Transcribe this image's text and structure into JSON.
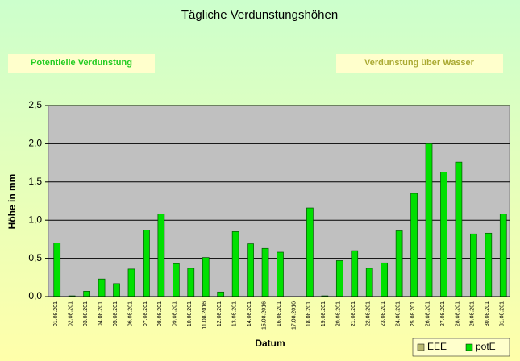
{
  "chart_data": {
    "type": "bar",
    "title": "Tägliche Verdunstungshöhen",
    "annotations": [
      "Potentielle Verdunstung",
      "Verdunstung über Wasser"
    ],
    "xlabel": "Datum",
    "ylabel": "Höhe in mm",
    "categories": [
      "01.08.201",
      "02.08.201",
      "03.08.201",
      "04.08.201",
      "05.08.201",
      "06.08.201",
      "07.08.201",
      "08.08.201",
      "09.08.201",
      "10.08.201",
      "11.08.2016",
      "12.08.201",
      "13.08.201",
      "14.08.201",
      "15.08.2016",
      "16.08.201",
      "17.08.2016",
      "18.08.201",
      "19.08.201",
      "20.08.201",
      "21.08.201",
      "22.08.201",
      "23.08.201",
      "24.08.201",
      "25.08.201",
      "26.08.201",
      "27.08.201",
      "28.08.201",
      "29.08.201",
      "30.08.201",
      "31.08.201"
    ],
    "series": [
      {
        "name": "EEE",
        "color": "#b8b870",
        "values": [
          null,
          null,
          null,
          null,
          null,
          null,
          null,
          null,
          null,
          null,
          null,
          null,
          null,
          null,
          null,
          null,
          null,
          null,
          null,
          null,
          null,
          null,
          null,
          null,
          null,
          null,
          null,
          null,
          null,
          null,
          null
        ]
      },
      {
        "name": "potE",
        "color": "#00e000",
        "values": [
          0.7,
          0.01,
          0.07,
          0.23,
          0.17,
          0.36,
          0.87,
          1.08,
          0.43,
          0.37,
          0.51,
          0.06,
          0.85,
          0.69,
          0.63,
          0.58,
          0,
          1.16,
          0.01,
          0.47,
          0.6,
          0.37,
          0.44,
          0.86,
          1.35,
          2.0,
          1.63,
          1.76,
          0.82,
          0.83,
          1.08
        ]
      }
    ],
    "ylim": [
      0,
      2.5
    ],
    "yticks": [
      {
        "value": 0,
        "label": "0,0"
      },
      {
        "value": 0.5,
        "label": "0,5"
      },
      {
        "value": 1,
        "label": "1,0"
      },
      {
        "value": 1.5,
        "label": "1,5"
      },
      {
        "value": 2,
        "label": "2,0"
      },
      {
        "value": 2.5,
        "label": "2,5"
      }
    ],
    "grid": true,
    "legend": "bottom-right"
  }
}
